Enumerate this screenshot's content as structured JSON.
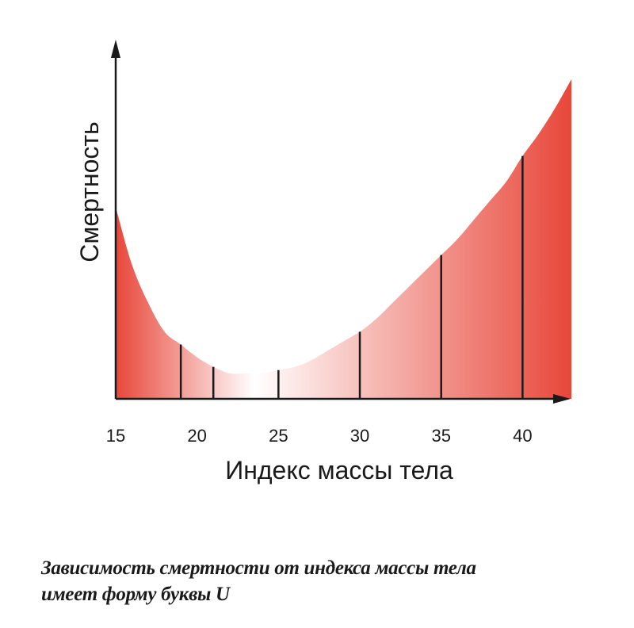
{
  "chart_data": {
    "type": "area",
    "title": "",
    "xlabel": "Индекс массы тела",
    "ylabel": "Смертность",
    "xlim": [
      15,
      43
    ],
    "ylim": [
      0,
      1
    ],
    "x_ticks": [
      15,
      20,
      25,
      30,
      35,
      40
    ],
    "x_tick_labels": [
      "15",
      "20",
      "25",
      "30",
      "35",
      "40"
    ],
    "y_ticks": [],
    "grid": false,
    "legend": "none",
    "fill_gradient": {
      "edge_color": "#e8473a",
      "center_color": "#ffffff",
      "center_x": 23.5
    },
    "line_color": "#1a1a1a",
    "series": [
      {
        "x": [
          15,
          16,
          17,
          18,
          19,
          20,
          21,
          22,
          23,
          24,
          25,
          26,
          27,
          28,
          29,
          30,
          31,
          32,
          33,
          34,
          35,
          36,
          37,
          38,
          39,
          40,
          41,
          42,
          43
        ],
        "values": [
          0.6,
          0.42,
          0.3,
          0.21,
          0.17,
          0.13,
          0.1,
          0.08,
          0.08,
          0.08,
          0.09,
          0.1,
          0.12,
          0.15,
          0.18,
          0.21,
          0.25,
          0.3,
          0.35,
          0.4,
          0.45,
          0.5,
          0.56,
          0.62,
          0.68,
          0.76,
          0.83,
          0.91,
          1.0
        ]
      }
    ],
    "marker_lines_x": [
      19,
      21,
      25,
      30,
      35,
      40
    ]
  },
  "caption": {
    "line1": "Зависимость смертности от индекса массы тела",
    "line2": "имеет форму буквы U"
  }
}
